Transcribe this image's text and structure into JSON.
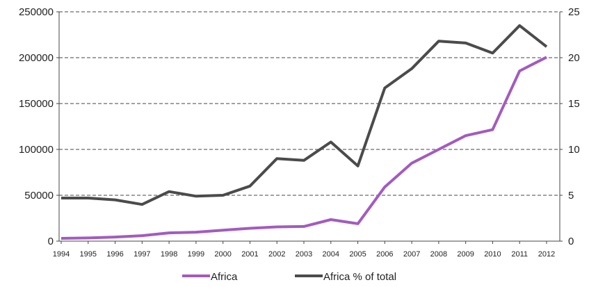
{
  "chart_data": {
    "type": "line",
    "x": [
      "1994",
      "1995",
      "1996",
      "1997",
      "1998",
      "1999",
      "2000",
      "2001",
      "2002",
      "2003",
      "2004",
      "2005",
      "2006",
      "2007",
      "2008",
      "2009",
      "2010",
      "2011",
      "2012"
    ],
    "series": [
      {
        "name": "Africa",
        "axis": "left",
        "color": "#a35bbf",
        "values": [
          3000,
          3500,
          4500,
          6000,
          9000,
          9800,
          12000,
          14000,
          15500,
          16000,
          23500,
          19000,
          59000,
          85000,
          100000,
          115000,
          121500,
          185500,
          200500
        ]
      },
      {
        "name": "Africa % of total",
        "axis": "right",
        "color": "#4b4b4b",
        "values": [
          4.7,
          4.7,
          4.5,
          4.0,
          5.4,
          4.9,
          5.0,
          6.0,
          9.0,
          8.8,
          10.8,
          8.2,
          16.7,
          18.8,
          21.8,
          21.6,
          20.5,
          23.5,
          21.2
        ]
      }
    ],
    "y_left": {
      "range": [
        0,
        250000
      ],
      "ticks": [
        "0",
        "50000",
        "100000",
        "150000",
        "200000",
        "250000"
      ]
    },
    "y_right": {
      "range": [
        0,
        25
      ],
      "ticks": [
        "0",
        "5",
        "10",
        "15",
        "20",
        "25"
      ]
    },
    "grid": "horizontal-dashed",
    "legend": "bottom",
    "title": "",
    "xlabel": "",
    "ylabel": ""
  }
}
